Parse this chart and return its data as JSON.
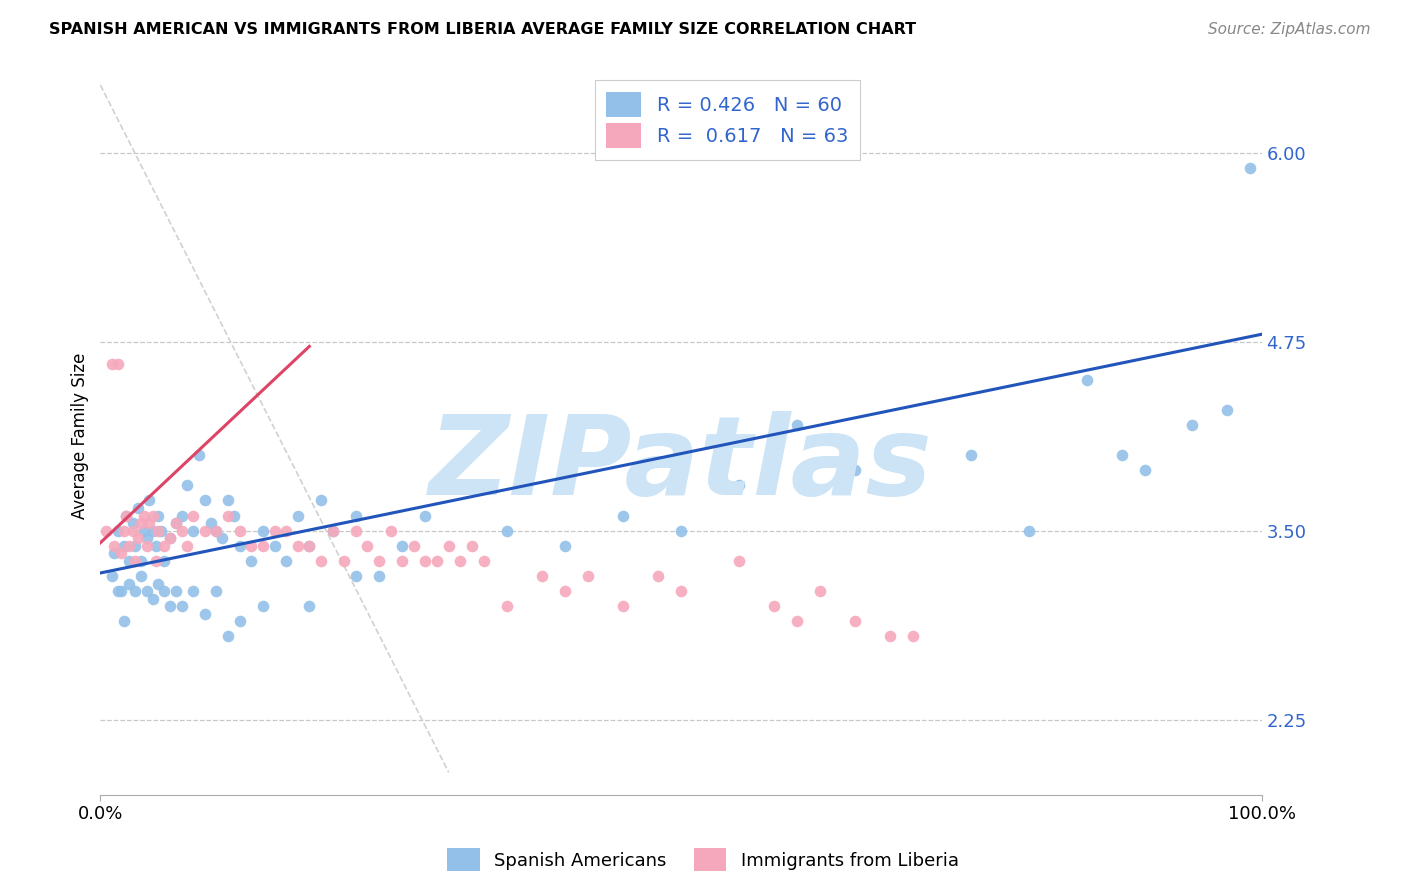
{
  "title": "SPANISH AMERICAN VS IMMIGRANTS FROM LIBERIA AVERAGE FAMILY SIZE CORRELATION CHART",
  "source": "Source: ZipAtlas.com",
  "ylabel": "Average Family Size",
  "xlim": [
    0.0,
    100.0
  ],
  "ylim": [
    1.75,
    6.5
  ],
  "yticks": [
    2.25,
    3.5,
    4.75,
    6.0
  ],
  "xticklabels": [
    "0.0%",
    "100.0%"
  ],
  "background_color": "#ffffff",
  "grid_color": "#c8c8c8",
  "watermark": "ZIPatlas",
  "watermark_color": "#cce4f5",
  "legend_r1": "R = 0.426",
  "legend_n1": "N = 60",
  "legend_r2": "R =  0.617",
  "legend_n2": "N = 63",
  "blue_color": "#92c0e8",
  "pink_color": "#f5a8bb",
  "trend_blue": "#2255bb",
  "trend_pink": "#dd4466",
  "diag_color": "#cccccc",
  "label_color": "#3366cc",
  "sa_x": [
    1.2,
    1.5,
    1.8,
    2.0,
    2.2,
    2.5,
    2.8,
    3.0,
    3.2,
    3.5,
    3.8,
    4.0,
    4.2,
    4.5,
    4.8,
    5.0,
    5.2,
    5.5,
    6.0,
    6.5,
    7.0,
    7.5,
    8.0,
    8.5,
    9.0,
    9.5,
    10.0,
    10.5,
    11.0,
    11.5,
    12.0,
    13.0,
    14.0,
    15.0,
    16.0,
    17.0,
    18.0,
    19.0,
    20.0,
    22.0,
    24.0,
    26.0,
    28.0,
    30.0,
    35.0,
    40.0,
    45.0,
    50.0,
    55.0,
    60.0,
    65.0,
    70.0,
    75.0,
    80.0,
    85.0,
    88.0,
    90.0,
    94.0,
    97.0,
    99.0
  ],
  "sa_y": [
    3.35,
    3.5,
    3.1,
    3.4,
    3.6,
    3.3,
    3.55,
    3.4,
    3.65,
    3.3,
    3.5,
    3.45,
    3.7,
    3.5,
    3.4,
    3.6,
    3.5,
    3.3,
    3.45,
    3.55,
    3.6,
    3.8,
    3.5,
    4.0,
    3.7,
    3.55,
    3.5,
    3.45,
    3.7,
    3.6,
    3.4,
    3.3,
    3.5,
    3.4,
    3.3,
    3.6,
    3.4,
    3.7,
    3.5,
    3.6,
    3.2,
    3.4,
    3.6,
    3.8,
    3.5,
    3.4,
    3.6,
    3.5,
    3.8,
    4.2,
    3.9,
    4.1,
    4.0,
    3.5,
    4.5,
    4.0,
    3.9,
    4.2,
    4.3,
    5.9
  ],
  "sa_below_x": [
    1.0,
    1.5,
    2.0,
    2.5,
    3.0,
    3.5,
    4.0,
    4.5,
    5.0,
    5.5,
    6.0,
    6.5,
    7.0,
    8.0,
    9.0,
    10.0,
    11.0,
    12.0,
    14.0,
    18.0,
    22.0
  ],
  "sa_below_y": [
    3.2,
    3.1,
    2.9,
    3.15,
    3.1,
    3.2,
    3.1,
    3.05,
    3.15,
    3.1,
    3.0,
    3.1,
    3.0,
    3.1,
    2.95,
    3.1,
    2.8,
    2.9,
    3.0,
    3.0,
    3.2
  ],
  "lib_x": [
    0.5,
    1.0,
    1.2,
    1.5,
    1.8,
    2.0,
    2.2,
    2.5,
    2.8,
    3.0,
    3.2,
    3.5,
    3.8,
    4.0,
    4.2,
    4.5,
    4.8,
    5.0,
    5.5,
    6.0,
    6.5,
    7.0,
    7.5,
    8.0,
    9.0,
    10.0,
    11.0,
    12.0,
    13.0,
    14.0,
    15.0,
    16.0,
    17.0,
    18.0,
    19.0,
    20.0,
    21.0,
    22.0,
    23.0,
    24.0,
    25.0,
    26.0,
    27.0,
    28.0,
    29.0,
    30.0,
    31.0,
    32.0,
    33.0,
    35.0,
    38.0,
    40.0,
    42.0,
    45.0,
    48.0,
    50.0,
    55.0,
    58.0,
    60.0,
    62.0,
    65.0,
    68.0,
    70.0
  ],
  "lib_y": [
    3.5,
    4.6,
    3.4,
    4.6,
    3.35,
    3.5,
    3.6,
    3.4,
    3.5,
    3.3,
    3.45,
    3.55,
    3.6,
    3.4,
    3.55,
    3.6,
    3.3,
    3.5,
    3.4,
    3.45,
    3.55,
    3.5,
    3.4,
    3.6,
    3.5,
    3.5,
    3.6,
    3.5,
    3.4,
    3.4,
    3.5,
    3.5,
    3.4,
    3.4,
    3.3,
    3.5,
    3.3,
    3.5,
    3.4,
    3.3,
    3.5,
    3.3,
    3.4,
    3.3,
    3.3,
    3.4,
    3.3,
    3.4,
    3.3,
    3.0,
    3.2,
    3.1,
    3.2,
    3.0,
    3.2,
    3.1,
    3.3,
    3.0,
    2.9,
    3.1,
    2.9,
    2.8,
    2.8
  ],
  "trend_blue_x0": 0,
  "trend_blue_y0": 3.22,
  "trend_blue_x1": 100,
  "trend_blue_y1": 4.8,
  "trend_pink_x0": 0,
  "trend_pink_y0": 3.42,
  "trend_pink_x1": 18,
  "trend_pink_y1": 4.72,
  "diag_x0": 0,
  "diag_y0": 6.45,
  "diag_x1": 30,
  "diag_y1": 1.9
}
